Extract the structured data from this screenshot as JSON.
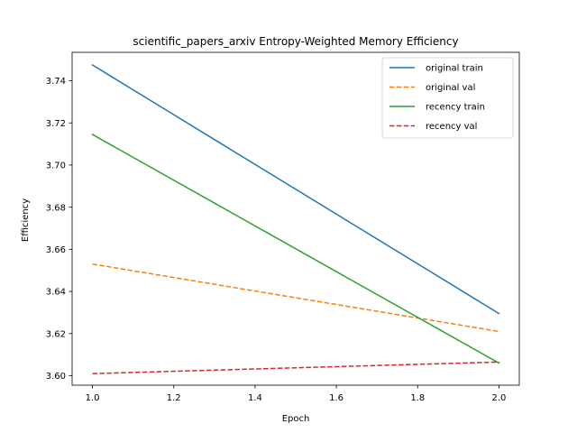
{
  "chart_data": {
    "type": "line",
    "title": "scientific_papers_arxiv Entropy-Weighted Memory Efficiency",
    "xlabel": "Epoch",
    "ylabel": "Efficiency",
    "xlim": [
      0.95,
      2.05
    ],
    "ylim": [
      3.5955,
      3.7535
    ],
    "xticks": [
      1.0,
      1.2,
      1.4,
      1.6,
      1.8,
      2.0
    ],
    "xtick_labels": [
      "1.0",
      "1.2",
      "1.4",
      "1.6",
      "1.8",
      "2.0"
    ],
    "yticks": [
      3.6,
      3.62,
      3.64,
      3.66,
      3.68,
      3.7,
      3.72,
      3.74
    ],
    "ytick_labels": [
      "3.60",
      "3.62",
      "3.64",
      "3.66",
      "3.68",
      "3.70",
      "3.72",
      "3.74"
    ],
    "grid": false,
    "legend_position": "top-right",
    "x": [
      1.0,
      2.0
    ],
    "series": [
      {
        "name": "original train",
        "values": [
          3.7475,
          3.6295
        ],
        "color": "#1f77b4",
        "dashed": false
      },
      {
        "name": "original val",
        "values": [
          3.653,
          3.621
        ],
        "color": "#ff7f0e",
        "dashed": true
      },
      {
        "name": "recency train",
        "values": [
          3.7145,
          3.606
        ],
        "color": "#2ca02c",
        "dashed": false
      },
      {
        "name": "recency val",
        "values": [
          3.601,
          3.6065
        ],
        "color": "#d62728",
        "dashed": true
      }
    ]
  }
}
